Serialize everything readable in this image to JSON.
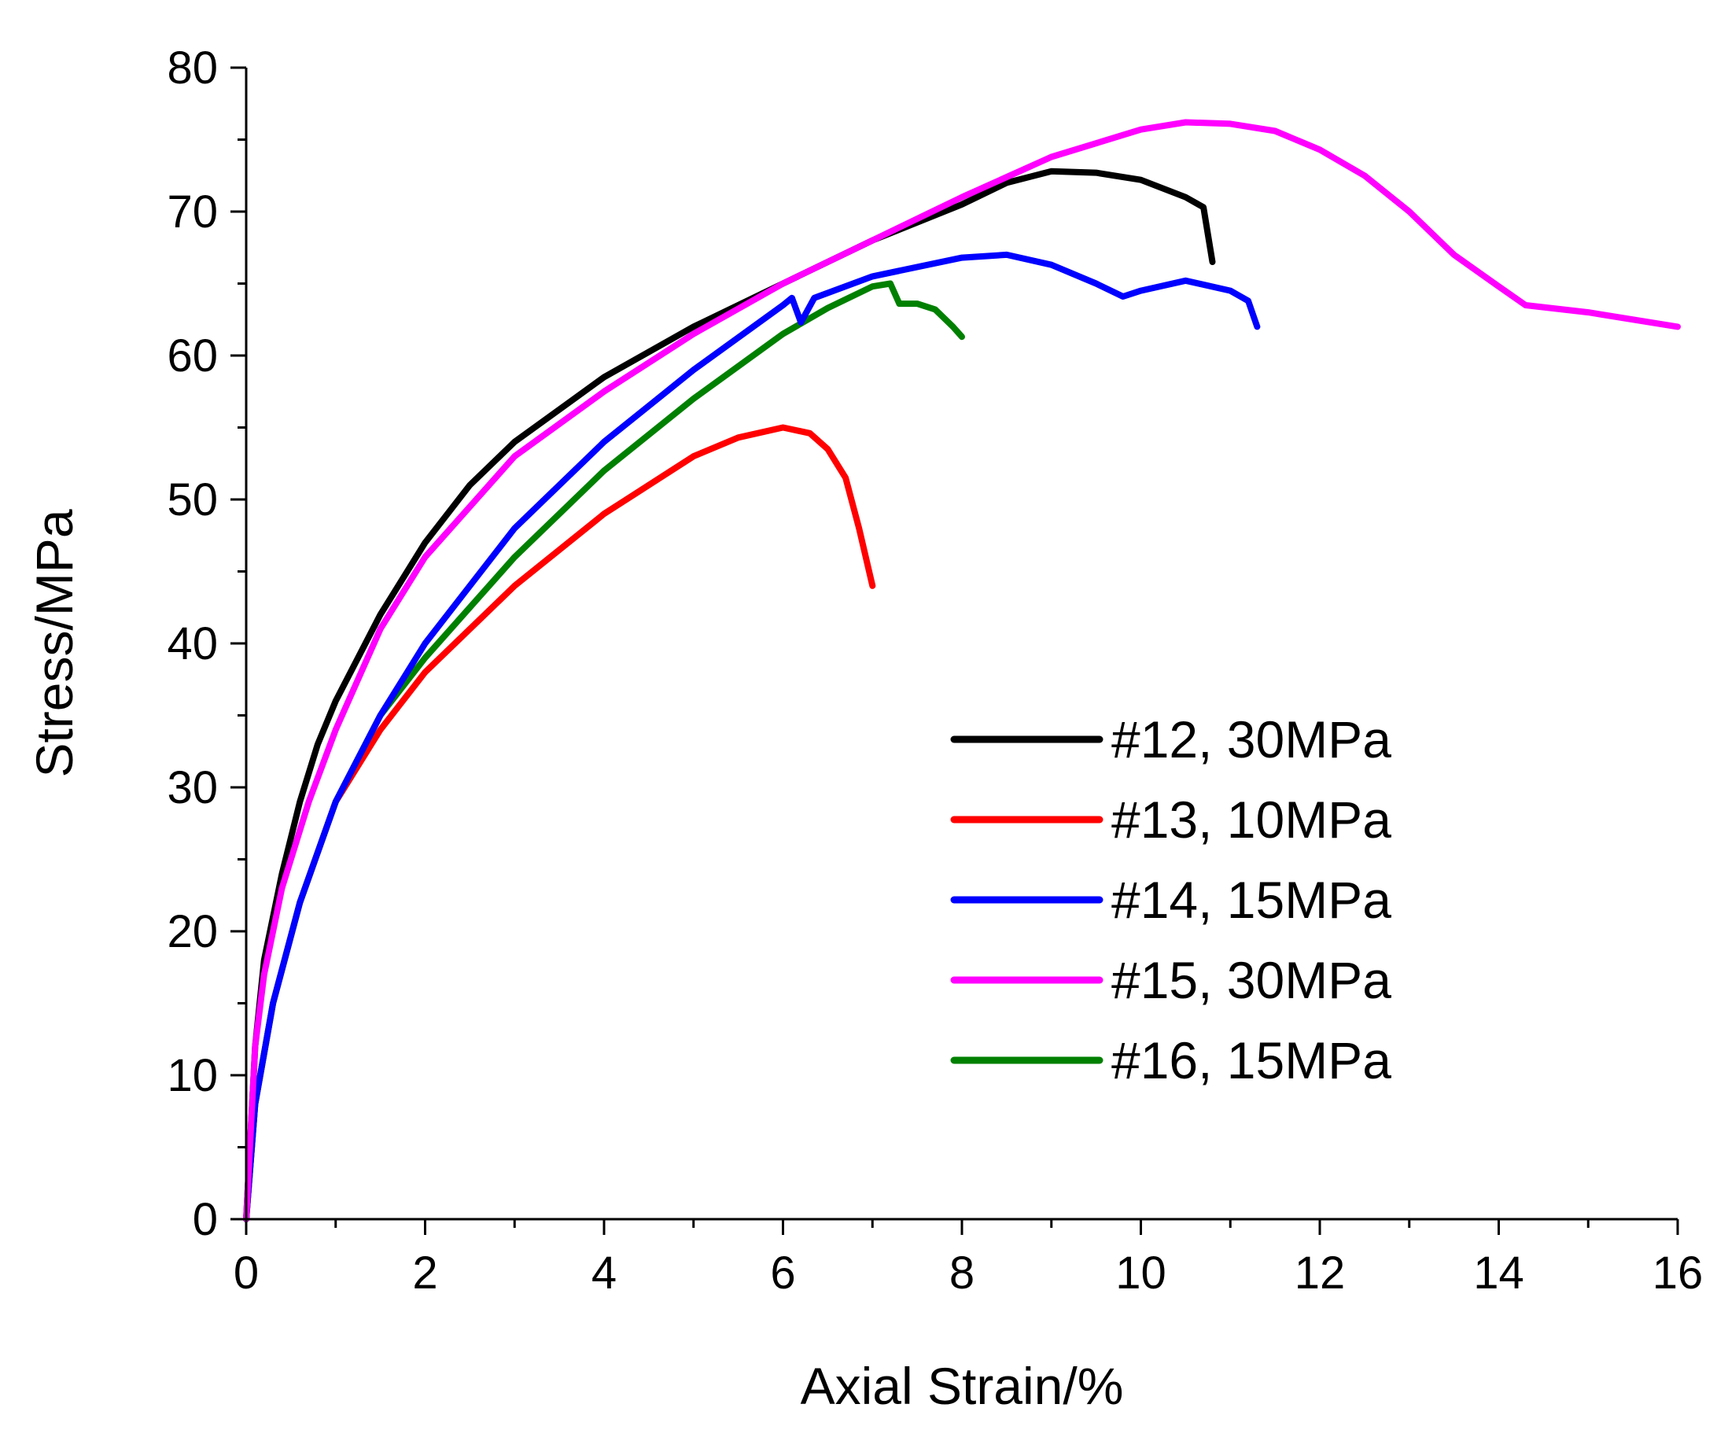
{
  "chart_data": {
    "type": "line",
    "title": "",
    "xlabel": "Axial Strain/%",
    "ylabel": "Stress/MPa",
    "xlim": [
      0,
      16
    ],
    "ylim": [
      0,
      80
    ],
    "xticks": [
      "0",
      "2",
      "4",
      "6",
      "8",
      "10",
      "12",
      "14",
      "16"
    ],
    "yticks": [
      "0",
      "10",
      "20",
      "30",
      "40",
      "50",
      "60",
      "70",
      "80"
    ],
    "grid": false,
    "legend_position": "center-right",
    "series": [
      {
        "name": "#12, 30MPa",
        "color": "#000000",
        "x": [
          0,
          0.1,
          0.2,
          0.4,
          0.6,
          0.8,
          1,
          1.5,
          2,
          2.5,
          3,
          4,
          5,
          6,
          7,
          8,
          8.5,
          9,
          9.5,
          10,
          10.5,
          10.7,
          10.8
        ],
        "y": [
          0,
          12,
          18,
          24,
          29,
          33,
          36,
          42,
          47,
          51,
          54,
          58.5,
          62,
          65,
          68,
          70.5,
          72,
          72.8,
          72.7,
          72.2,
          71,
          70.3,
          66.5
        ]
      },
      {
        "name": "#13, 10MPa",
        "color": "#ff0000",
        "x": [
          0,
          0.1,
          0.3,
          0.6,
          1,
          1.5,
          2,
          3,
          4,
          5,
          5.5,
          6,
          6.3,
          6.5,
          6.7,
          6.85,
          7
        ],
        "y": [
          0,
          8,
          15,
          22,
          29,
          34,
          38,
          44,
          49,
          53,
          54.3,
          55,
          54.6,
          53.5,
          51.5,
          48,
          44
        ]
      },
      {
        "name": "#14, 15MPa",
        "color": "#0000ff",
        "x": [
          0,
          0.1,
          0.3,
          0.6,
          1,
          1.5,
          2,
          3,
          4,
          5,
          6,
          6.1,
          6.2,
          6.35,
          7,
          8,
          8.5,
          9,
          9.5,
          9.8,
          10,
          10.5,
          11,
          11.2,
          11.3
        ],
        "y": [
          0,
          8,
          15,
          22,
          29,
          35,
          40,
          48,
          54,
          59,
          63.5,
          64,
          62.3,
          64,
          65.5,
          66.8,
          67,
          66.3,
          65,
          64.1,
          64.5,
          65.2,
          64.5,
          63.8,
          62
        ]
      },
      {
        "name": "#15, 30MPa",
        "color": "#ff00ff",
        "x": [
          0,
          0.1,
          0.2,
          0.4,
          0.7,
          1,
          1.5,
          2,
          3,
          4,
          5,
          6,
          7,
          8,
          9,
          10,
          10.5,
          11,
          11.5,
          12,
          12.5,
          13,
          13.5,
          14,
          14.3,
          15,
          16
        ],
        "y": [
          0,
          12,
          17,
          23,
          29,
          34,
          41,
          46,
          53,
          57.5,
          61.5,
          65,
          68,
          71,
          73.8,
          75.7,
          76.2,
          76.1,
          75.6,
          74.3,
          72.5,
          70,
          67,
          64.8,
          63.5,
          63,
          62
        ]
      },
      {
        "name": "#16, 15MPa",
        "color": "#008000",
        "x": [
          0,
          0.1,
          0.3,
          0.6,
          1,
          1.5,
          2,
          3,
          4,
          5,
          6,
          6.5,
          7,
          7.2,
          7.3,
          7.5,
          7.7,
          7.9,
          8
        ],
        "y": [
          0,
          8,
          15,
          22,
          29,
          35,
          39,
          46,
          52,
          57,
          61.5,
          63.3,
          64.8,
          65,
          63.6,
          63.6,
          63.2,
          62,
          61.3
        ]
      }
    ]
  }
}
